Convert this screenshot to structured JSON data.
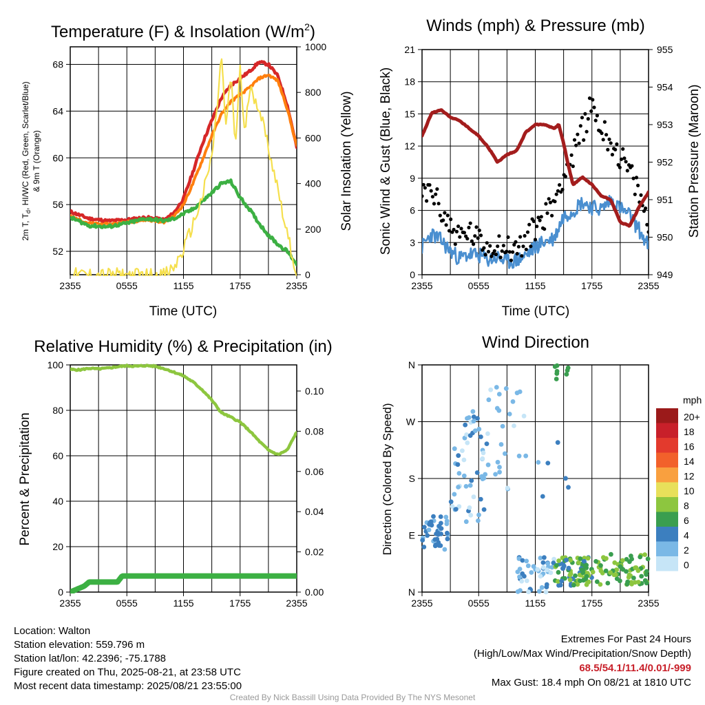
{
  "panels": {
    "temperature": {
      "title": "Temperature (F) & Insolation (W/m",
      "title_sup": "2",
      "title_end": ")",
      "ylabel_line1": "2m T, T",
      "ylabel_sub": "d",
      "ylabel_line1_end": ", HI/WC (Red, Green, Scarlet/Blue)",
      "ylabel_line2": "& 9m T (Orange)",
      "y2label": "Solar Insolation (Yellow)",
      "xlabel": "Time (UTC)"
    },
    "winds": {
      "title": "Winds (mph) & Pressure (mb)",
      "ylabel": "Sonic Wind & Gust (Blue, Black)",
      "y2label": "Station Pressure (Maroon)",
      "xlabel": "Time (UTC)"
    },
    "humidity": {
      "title": "Relative Humidity (%) & Precipitation (in)",
      "ylabel": "Percent & Precipitation"
    },
    "direction": {
      "title": "Wind Direction",
      "ylabel": "Direction (Colored By Speed)",
      "legend_title": "mph"
    }
  },
  "chart_data": [
    {
      "type": "line",
      "id": "temperature",
      "x_ticks": [
        "2355",
        "0555",
        "1155",
        "1755",
        "2355"
      ],
      "x_hours": [
        0,
        24
      ],
      "ylim": [
        50,
        69.5
      ],
      "y_ticks": [
        "52",
        "56",
        "60",
        "64",
        "68"
      ],
      "y2lim": [
        0,
        1000
      ],
      "y2_ticks": [
        "0",
        "200",
        "400",
        "600",
        "800",
        "1000"
      ],
      "series": [
        {
          "color": "#d62728",
          "hours": [
            0,
            2,
            4,
            6,
            8,
            10,
            11,
            12,
            13,
            14,
            15,
            16,
            17,
            18,
            19,
            20,
            21,
            22,
            23,
            24
          ],
          "values": [
            55.4,
            54.8,
            54.6,
            54.7,
            54.9,
            54.7,
            55.3,
            56.5,
            58.8,
            61.2,
            63.2,
            65.1,
            66.2,
            66.8,
            67.4,
            68.2,
            68.0,
            67.0,
            64.5,
            60.9
          ]
        },
        {
          "color": "#ff7f0e",
          "hours": [
            0,
            2,
            4,
            6,
            8,
            10,
            11,
            12,
            13,
            14,
            15,
            16,
            17,
            18,
            19,
            20,
            21,
            22,
            23,
            24
          ],
          "values": [
            55.0,
            54.4,
            54.3,
            54.5,
            54.7,
            54.5,
            55.0,
            56.0,
            57.8,
            59.8,
            61.9,
            63.7,
            64.8,
            65.4,
            66.0,
            66.8,
            67.1,
            66.6,
            64.2,
            61.0
          ]
        },
        {
          "color": "#3cb043",
          "hours": [
            0,
            2,
            4,
            6,
            8,
            10,
            11,
            12,
            13,
            14,
            15,
            16,
            17,
            18,
            19,
            20,
            21,
            22,
            23,
            24
          ],
          "values": [
            54.9,
            54.2,
            54.1,
            54.4,
            54.8,
            54.6,
            54.8,
            55.2,
            55.6,
            56.3,
            57.0,
            57.8,
            58.0,
            56.6,
            55.6,
            54.4,
            53.4,
            52.6,
            52.0,
            50.9
          ]
        },
        {
          "color": "#f5df4d",
          "axis": "y2",
          "hours": [
            0,
            9,
            10,
            11,
            12,
            13,
            14,
            15,
            15.5,
            16,
            16.5,
            17,
            17.5,
            18,
            18.5,
            19,
            20,
            21,
            22,
            23,
            24
          ],
          "values": [
            0,
            0,
            0,
            30,
            110,
            220,
            340,
            520,
            700,
            970,
            640,
            880,
            560,
            910,
            600,
            820,
            740,
            560,
            380,
            180,
            0
          ]
        }
      ]
    },
    {
      "type": "line",
      "id": "winds",
      "x_ticks": [
        "2355",
        "0555",
        "1155",
        "1755",
        "2355"
      ],
      "ylim": [
        0,
        21
      ],
      "y_ticks": [
        "0",
        "3",
        "6",
        "9",
        "12",
        "15",
        "18",
        "21"
      ],
      "y2lim": [
        949,
        955
      ],
      "y2_ticks": [
        "949",
        "950",
        "951",
        "952",
        "953",
        "954",
        "955"
      ],
      "series": [
        {
          "color": "#4a8fd0",
          "hours": [
            0,
            1,
            2,
            3,
            4,
            5,
            6,
            7,
            8,
            9,
            10,
            11,
            12,
            13,
            14,
            15,
            16,
            17,
            18,
            19,
            20,
            21,
            22,
            23,
            24
          ],
          "values": [
            2.6,
            3.8,
            3.2,
            2.2,
            1.5,
            1.9,
            1.8,
            1.4,
            1.6,
            1.2,
            1.3,
            1.8,
            2.6,
            3.1,
            3.4,
            5.5,
            6.0,
            6.8,
            6.3,
            6.1,
            7.0,
            6.2,
            5.5,
            4.2,
            2.6
          ]
        },
        {
          "color": "#000000",
          "hours": [
            0,
            1,
            2,
            3,
            4,
            5,
            6,
            7,
            8,
            9,
            10,
            11,
            12,
            13,
            14,
            15,
            16,
            17,
            18,
            19,
            20,
            21,
            22,
            23,
            24
          ],
          "values": [
            7.3,
            8.0,
            6.0,
            4.5,
            3.5,
            4.0,
            3.1,
            2.6,
            3.0,
            2.4,
            2.4,
            3.0,
            4.5,
            5.5,
            6.8,
            9.5,
            11.0,
            13.5,
            16.0,
            13.5,
            12.5,
            11.0,
            9.5,
            7.5,
            4.5
          ]
        },
        {
          "color": "#a31d1d",
          "axis": "y2",
          "hours": [
            0,
            1,
            2,
            3,
            4,
            5,
            6,
            7,
            8,
            9,
            10,
            11,
            12,
            13,
            14,
            14.5,
            15,
            15.5,
            16,
            17,
            18,
            19,
            20,
            21,
            22,
            23,
            24
          ],
          "values": [
            952.7,
            953.3,
            953.4,
            953.2,
            953.1,
            952.9,
            952.7,
            952.4,
            952.0,
            952.2,
            952.3,
            952.8,
            953.0,
            953.0,
            952.9,
            953.0,
            952.5,
            951.9,
            951.4,
            951.6,
            951.4,
            951.1,
            951.0,
            950.4,
            950.3,
            950.8,
            951.2
          ]
        }
      ]
    },
    {
      "type": "line",
      "id": "humidity",
      "x_ticks": [
        "2355",
        "0555",
        "1155",
        "1755",
        "2355"
      ],
      "ylim": [
        0,
        100
      ],
      "y_ticks": [
        "0",
        "20",
        "40",
        "60",
        "80",
        "100"
      ],
      "y2lim": [
        0,
        0.113
      ],
      "y2_ticks": [
        "0.00",
        "0.02",
        "0.04",
        "0.06",
        "0.08",
        "0.10"
      ],
      "series": [
        {
          "color": "#8dc63f",
          "hours": [
            0,
            1,
            2,
            3,
            4,
            5,
            6,
            7,
            8,
            9,
            10,
            11,
            12,
            13,
            14,
            15,
            16,
            17,
            18,
            19,
            20,
            21,
            22,
            23,
            24
          ],
          "values": [
            98,
            97.8,
            98.5,
            98.2,
            98.6,
            99.2,
            99.6,
            99.4,
            99.7,
            99.4,
            98.3,
            96.8,
            95.2,
            92.5,
            89.0,
            84.5,
            79.0,
            77.0,
            74.8,
            71.0,
            66.5,
            62.5,
            60.5,
            62.5,
            70.5
          ]
        },
        {
          "color": "#3cb043",
          "axis": "y2",
          "hours": [
            0,
            0.5,
            1,
            1.5,
            2,
            2.5,
            3,
            4,
            5,
            5.5,
            6,
            8,
            12,
            16,
            20,
            24
          ],
          "values": [
            0,
            0.001,
            0.002,
            0.003,
            0.005,
            0.005,
            0.005,
            0.005,
            0.005,
            0.008,
            0.008,
            0.008,
            0.008,
            0.008,
            0.008,
            0.008
          ]
        }
      ]
    },
    {
      "type": "scatter",
      "id": "direction",
      "x_ticks": [
        "2355",
        "0555",
        "1155",
        "1755",
        "2355"
      ],
      "y_ticks": [
        "N",
        "E",
        "S",
        "W",
        "N"
      ],
      "ylim": [
        0,
        360
      ],
      "legend": {
        "labels": [
          "20+",
          "18",
          "16",
          "14",
          "12",
          "10",
          "8",
          "6",
          "4",
          "2",
          "0"
        ],
        "colors": [
          "#9b1a1a",
          "#c8202a",
          "#e33a2d",
          "#f2612b",
          "#f9a03f",
          "#e8e05a",
          "#8dc63f",
          "#3a9e4f",
          "#3c7fbf",
          "#7ab8e6",
          "#c6e5f7"
        ]
      }
    }
  ],
  "footer": {
    "location": "Location: Walton",
    "elevation": "Station elevation: 559.796 m",
    "latlon": "Station lat/lon: 42.2396; -75.1788",
    "created": "Figure created on Thu, 2025-08-21, at 23:58 UTC",
    "recent": "Most recent data timestamp: 2025/08/21 23:55:00",
    "extremes_title": "Extremes For Past 24 Hours",
    "extremes_sub": "(High/Low/Max Wind/Precipitation/Snow Depth)",
    "extremes_values": "68.5/54.1/11.4/0.01/-999",
    "max_gust": "Max Gust: 18.4 mph On 08/21 at 1810 UTC",
    "credit": "Created By Nick Bassill Using Data Provided By The NYS Mesonet"
  }
}
